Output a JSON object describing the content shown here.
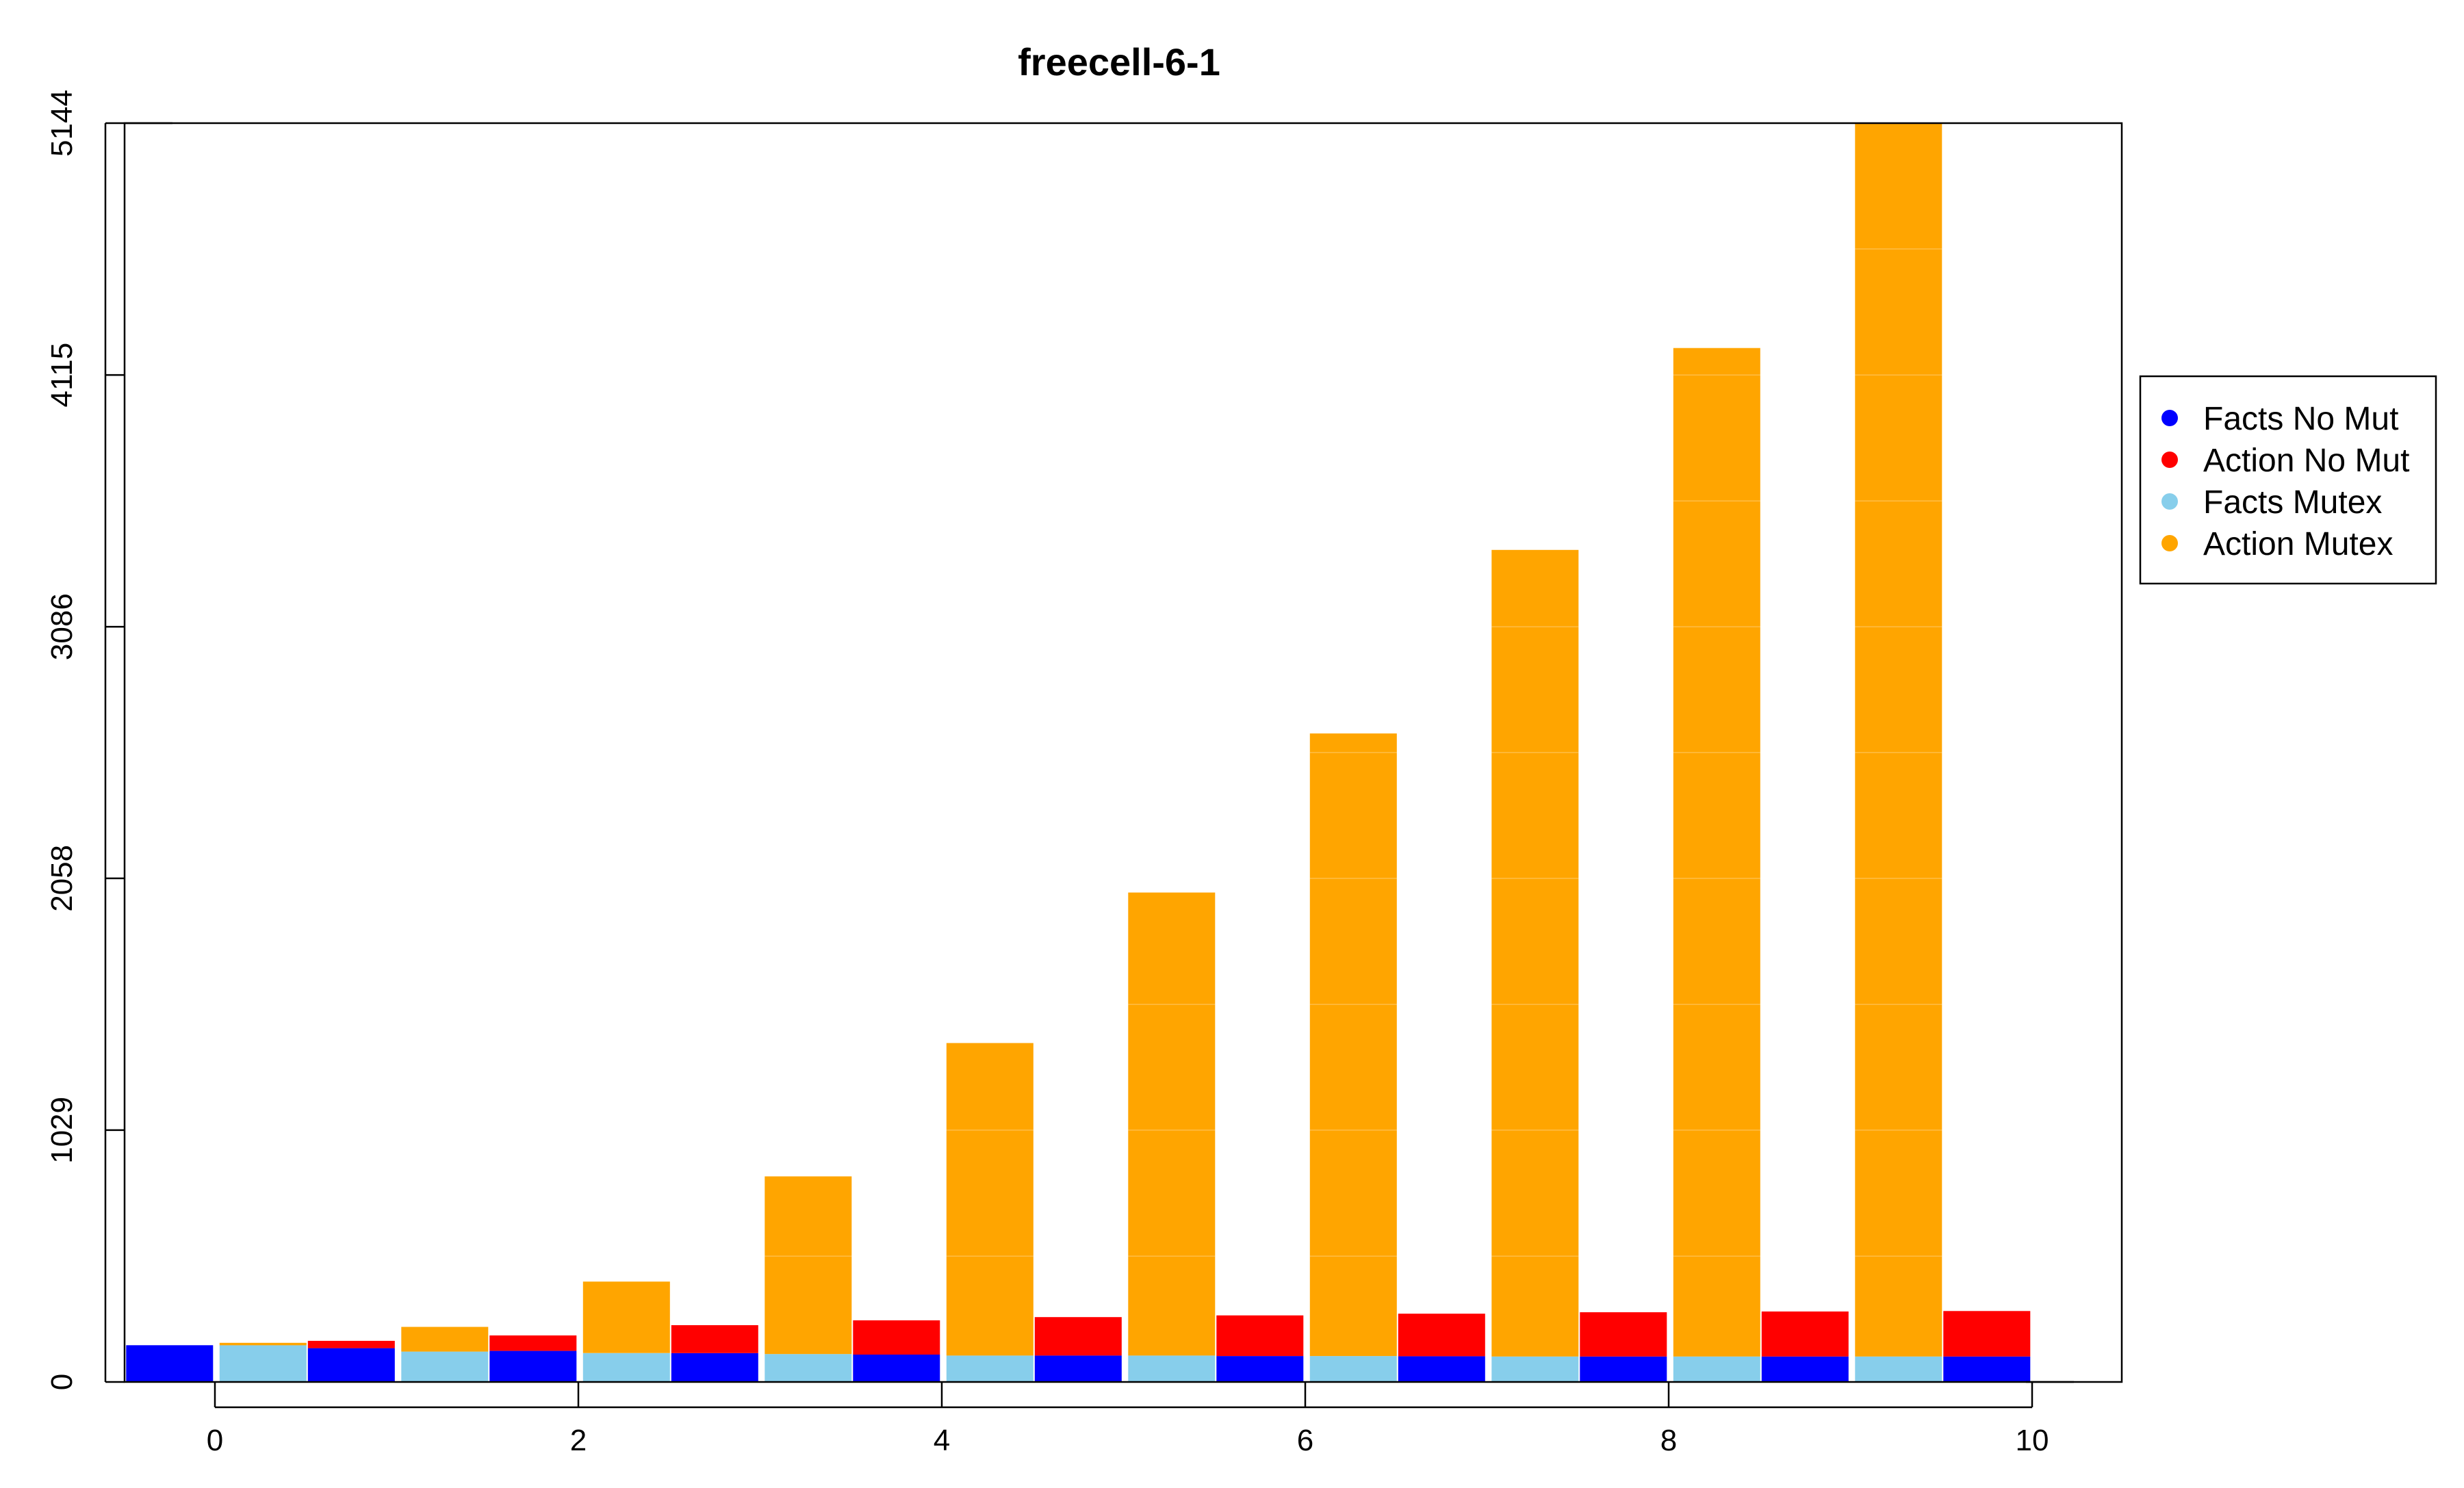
{
  "chart_data": {
    "type": "bar",
    "title": "freecell-6-1",
    "xlabel": "",
    "ylabel": "",
    "x_ticks": [
      "0",
      "2",
      "4",
      "6",
      "8",
      "10"
    ],
    "y_ticks": [
      "0",
      "1029",
      "2058",
      "3086",
      "4115",
      "5144"
    ],
    "ylim": [
      0,
      5144
    ],
    "xlim": [
      -0.3,
      10.25
    ],
    "legend_position": "right",
    "series": [
      {
        "name": "Facts No Mut",
        "color": "#0000FF",
        "x": [
          0,
          1,
          2,
          3,
          4,
          5,
          6,
          7,
          8,
          9,
          10
        ],
        "values": [
          150,
          138,
          127,
          118,
          112,
          108,
          106,
          105,
          104,
          104,
          104
        ]
      },
      {
        "name": "Action No Mut",
        "color": "#FF0000",
        "x": [
          0,
          1,
          2,
          3,
          4,
          5,
          6,
          7,
          8,
          9,
          10
        ],
        "values": [
          0,
          168,
          190,
          232,
          252,
          265,
          272,
          279,
          285,
          288,
          290
        ]
      },
      {
        "name": "Facts Mutex",
        "color": "#87CEEB",
        "x": [
          0,
          1,
          2,
          3,
          4,
          5,
          6,
          7,
          8,
          9
        ],
        "values": [
          150,
          124,
          118,
          114,
          108,
          108,
          106,
          104,
          104,
          104
        ]
      },
      {
        "name": "Action Mutex",
        "color": "#FFA500",
        "x": [
          0,
          1,
          2,
          3,
          4,
          5,
          6,
          7,
          8,
          9
        ],
        "values": [
          160,
          225,
          410,
          840,
          1385,
          2000,
          2650,
          3400,
          4225,
          5144
        ]
      }
    ]
  }
}
